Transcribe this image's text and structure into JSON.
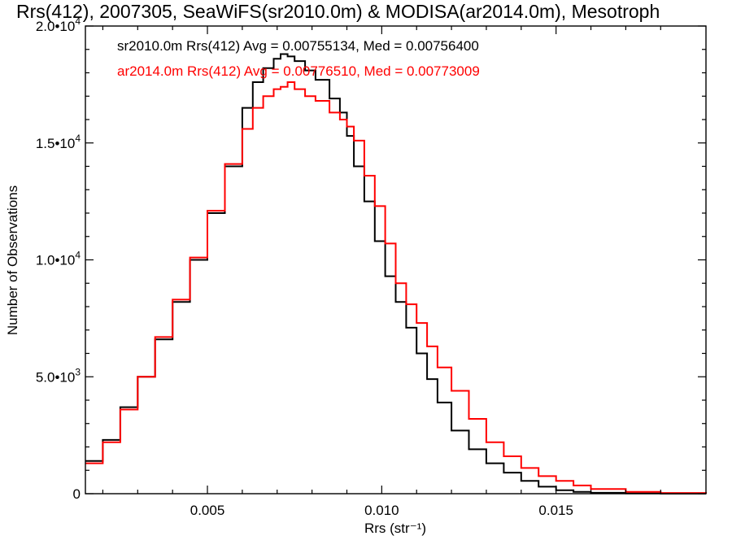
{
  "chart_data": {
    "type": "line",
    "title": "Rrs(412), 2007305, SeaWiFS(sr2010.0m) & MODISA(ar2014.0m), Mesotroph",
    "xlabel": "Rrs (str⁻¹)",
    "ylabel": "Number of Observations",
    "xlim": [
      0.0015,
      0.0193
    ],
    "ylim": [
      0,
      20000
    ],
    "x_ticks": [
      {
        "value": 0.005,
        "label": "0.005"
      },
      {
        "value": 0.01,
        "label": "0.010"
      },
      {
        "value": 0.015,
        "label": "0.015"
      }
    ],
    "y_ticks": [
      {
        "value": 0,
        "label": "0",
        "sup": ""
      },
      {
        "value": 5000,
        "label": "5.0•1 0",
        "base": "5.0•10",
        "sup": "3"
      },
      {
        "value": 10000,
        "base": "1.0•10",
        "sup": "4"
      },
      {
        "value": 15000,
        "base": "1.5•10",
        "sup": "4"
      },
      {
        "value": 20000,
        "base": "2.0•10",
        "sup": "4"
      }
    ],
    "legend": [
      {
        "text": "sr2010.0m Rrs(412) Avg = 0.00755134, Med = 0.00756400",
        "color": "#000000"
      },
      {
        "text": "ar2014.0m Rrs(412) Avg = 0.00776510, Med = 0.00773009",
        "color": "#ff0000"
      }
    ],
    "series": [
      {
        "name": "sr2010.0m Rrs(412)",
        "color": "#000000",
        "step": true,
        "x": [
          0.0015,
          0.002,
          0.0025,
          0.003,
          0.0035,
          0.004,
          0.0045,
          0.005,
          0.0055,
          0.006,
          0.0063,
          0.0066,
          0.0069,
          0.0071,
          0.0073,
          0.0075,
          0.0078,
          0.0081,
          0.0085,
          0.0088,
          0.009,
          0.0092,
          0.0095,
          0.0098,
          0.0101,
          0.0104,
          0.0107,
          0.011,
          0.0113,
          0.0116,
          0.012,
          0.0125,
          0.013,
          0.0135,
          0.014,
          0.0145,
          0.015,
          0.0155,
          0.016,
          0.017,
          0.018,
          0.0193
        ],
        "y": [
          1400,
          2300,
          3700,
          5000,
          6600,
          8200,
          10000,
          12000,
          14000,
          16500,
          17600,
          18200,
          18600,
          18800,
          18700,
          18500,
          18100,
          17700,
          16900,
          16300,
          15300,
          14000,
          12500,
          10800,
          9300,
          8200,
          7100,
          6000,
          4900,
          3900,
          2700,
          1900,
          1300,
          900,
          550,
          300,
          150,
          80,
          40,
          15,
          5,
          0
        ]
      },
      {
        "name": "ar2014.0m Rrs(412)",
        "color": "#ff0000",
        "step": true,
        "x": [
          0.0015,
          0.002,
          0.0025,
          0.003,
          0.0035,
          0.004,
          0.0045,
          0.005,
          0.0055,
          0.006,
          0.0063,
          0.0066,
          0.0069,
          0.0071,
          0.0073,
          0.0075,
          0.0078,
          0.0081,
          0.0085,
          0.0088,
          0.009,
          0.0092,
          0.0095,
          0.0098,
          0.0101,
          0.0104,
          0.0107,
          0.011,
          0.0113,
          0.0116,
          0.012,
          0.0125,
          0.013,
          0.0135,
          0.014,
          0.0145,
          0.015,
          0.0155,
          0.016,
          0.017,
          0.018,
          0.0193
        ],
        "y": [
          1300,
          2200,
          3600,
          5000,
          6700,
          8300,
          10100,
          12100,
          14100,
          15600,
          16500,
          17000,
          17300,
          17400,
          17600,
          17300,
          17000,
          16800,
          16300,
          16000,
          15700,
          15100,
          13600,
          12300,
          10700,
          9000,
          8100,
          7300,
          6300,
          5400,
          4400,
          3200,
          2200,
          1600,
          1100,
          750,
          550,
          350,
          200,
          80,
          30,
          5
        ]
      }
    ]
  }
}
